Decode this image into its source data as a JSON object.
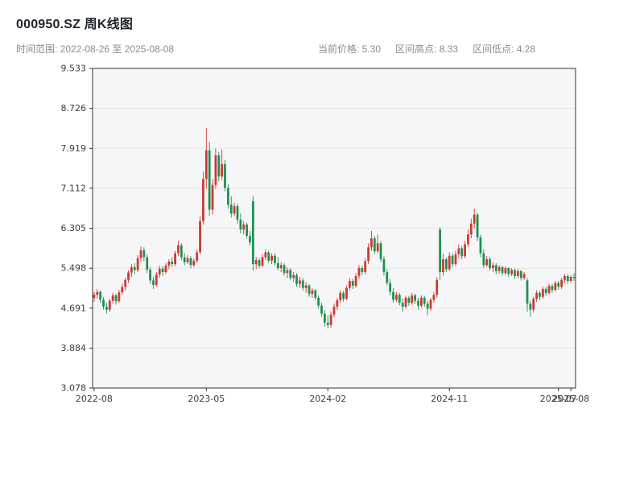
{
  "header": {
    "title": "000950.SZ 周K线图",
    "date_range_text": "时间范围: 2022-08-26 至 2025-08-08",
    "current_price_text": "当前价格: 5.30",
    "range_high_text": "区间高点: 8.33",
    "range_low_text": "区间低点: 4.28"
  },
  "chart_data": {
    "type": "candlestick",
    "title": "000950.SZ 周K线图",
    "symbol": "000950.SZ",
    "interval": "weekly",
    "start_date": "2022-08-26",
    "end_date": "2025-08-08",
    "current_price": 5.3,
    "range_high": 8.33,
    "range_low": 4.28,
    "ylim": [
      3.078,
      9.533
    ],
    "y_ticks": [
      3.078,
      3.884,
      4.691,
      5.498,
      6.305,
      7.112,
      7.919,
      8.726,
      9.533
    ],
    "x_ticks": [
      {
        "index": 0,
        "label": "2022-08"
      },
      {
        "index": 36,
        "label": "2023-05"
      },
      {
        "index": 75,
        "label": "2024-02"
      },
      {
        "index": 114,
        "label": "2024-11"
      },
      {
        "index": 149,
        "label": "2025-07"
      },
      {
        "index": 153,
        "label": "2025-08"
      }
    ],
    "grid": "horizontal",
    "legend": "none",
    "colors": {
      "up": "#cc3a30",
      "down": "#1e9151",
      "plot_bg": "#f6f6f8",
      "grid": "#e7e7ea",
      "axis": "#333333"
    },
    "candles": [
      [
        4.9,
        5.02,
        4.82,
        4.96
      ],
      [
        4.96,
        5.08,
        4.88,
        5.02
      ],
      [
        5.02,
        5.05,
        4.8,
        4.86
      ],
      [
        4.86,
        4.92,
        4.66,
        4.72
      ],
      [
        4.72,
        4.8,
        4.58,
        4.66
      ],
      [
        4.66,
        4.88,
        4.62,
        4.84
      ],
      [
        4.84,
        5.0,
        4.78,
        4.95
      ],
      [
        4.95,
        4.98,
        4.76,
        4.83
      ],
      [
        4.83,
        5.06,
        4.8,
        5.01
      ],
      [
        5.01,
        5.18,
        4.96,
        5.12
      ],
      [
        5.12,
        5.3,
        5.05,
        5.26
      ],
      [
        5.26,
        5.45,
        5.2,
        5.41
      ],
      [
        5.41,
        5.58,
        5.32,
        5.52
      ],
      [
        5.52,
        5.6,
        5.38,
        5.46
      ],
      [
        5.46,
        5.76,
        5.42,
        5.7
      ],
      [
        5.7,
        5.94,
        5.62,
        5.86
      ],
      [
        5.86,
        5.92,
        5.64,
        5.72
      ],
      [
        5.72,
        5.78,
        5.4,
        5.47
      ],
      [
        5.47,
        5.52,
        5.18,
        5.25
      ],
      [
        5.25,
        5.32,
        5.08,
        5.16
      ],
      [
        5.16,
        5.42,
        5.12,
        5.37
      ],
      [
        5.37,
        5.55,
        5.3,
        5.49
      ],
      [
        5.49,
        5.54,
        5.34,
        5.42
      ],
      [
        5.42,
        5.6,
        5.38,
        5.55
      ],
      [
        5.55,
        5.68,
        5.48,
        5.63
      ],
      [
        5.63,
        5.72,
        5.52,
        5.58
      ],
      [
        5.58,
        5.85,
        5.54,
        5.8
      ],
      [
        5.8,
        6.05,
        5.74,
        5.96
      ],
      [
        5.96,
        6.0,
        5.66,
        5.72
      ],
      [
        5.72,
        5.8,
        5.56,
        5.62
      ],
      [
        5.62,
        5.76,
        5.58,
        5.7
      ],
      [
        5.7,
        5.74,
        5.5,
        5.56
      ],
      [
        5.56,
        5.7,
        5.52,
        5.65
      ],
      [
        5.65,
        5.88,
        5.6,
        5.82
      ],
      [
        5.82,
        6.55,
        5.78,
        6.45
      ],
      [
        6.45,
        7.45,
        6.38,
        7.3
      ],
      [
        7.3,
        8.33,
        7.1,
        7.88
      ],
      [
        7.88,
        8.05,
        6.55,
        6.68
      ],
      [
        6.68,
        7.3,
        6.58,
        7.18
      ],
      [
        7.18,
        7.92,
        7.1,
        7.78
      ],
      [
        7.78,
        7.85,
        7.25,
        7.35
      ],
      [
        7.35,
        7.9,
        7.28,
        7.6
      ],
      [
        7.6,
        7.68,
        7.05,
        7.12
      ],
      [
        7.12,
        7.2,
        6.7,
        6.78
      ],
      [
        6.78,
        6.95,
        6.52,
        6.6
      ],
      [
        6.6,
        6.82,
        6.55,
        6.75
      ],
      [
        6.75,
        6.8,
        6.4,
        6.48
      ],
      [
        6.48,
        6.6,
        6.2,
        6.28
      ],
      [
        6.28,
        6.45,
        6.18,
        6.38
      ],
      [
        6.38,
        6.42,
        6.1,
        6.15
      ],
      [
        6.15,
        6.25,
        5.95,
        6.02
      ],
      [
        6.85,
        6.95,
        5.45,
        5.58
      ],
      [
        5.58,
        5.72,
        5.48,
        5.66
      ],
      [
        5.66,
        5.7,
        5.5,
        5.55
      ],
      [
        5.55,
        5.78,
        5.52,
        5.72
      ],
      [
        5.72,
        5.88,
        5.66,
        5.82
      ],
      [
        5.82,
        5.86,
        5.6,
        5.65
      ],
      [
        5.65,
        5.8,
        5.58,
        5.75
      ],
      [
        5.75,
        5.8,
        5.55,
        5.6
      ],
      [
        5.6,
        5.72,
        5.45,
        5.5
      ],
      [
        5.5,
        5.62,
        5.42,
        5.56
      ],
      [
        5.56,
        5.6,
        5.35,
        5.4
      ],
      [
        5.4,
        5.52,
        5.3,
        5.46
      ],
      [
        5.46,
        5.5,
        5.25,
        5.3
      ],
      [
        5.3,
        5.42,
        5.22,
        5.36
      ],
      [
        5.36,
        5.4,
        5.12,
        5.18
      ],
      [
        5.18,
        5.32,
        5.1,
        5.25
      ],
      [
        5.25,
        5.3,
        5.05,
        5.1
      ],
      [
        5.1,
        5.22,
        5.0,
        5.15
      ],
      [
        5.15,
        5.18,
        4.92,
        4.98
      ],
      [
        4.98,
        5.1,
        4.9,
        5.05
      ],
      [
        5.05,
        5.08,
        4.85,
        4.9
      ],
      [
        4.9,
        4.95,
        4.68,
        4.74
      ],
      [
        4.74,
        4.8,
        4.52,
        4.58
      ],
      [
        4.58,
        4.65,
        4.32,
        4.4
      ],
      [
        4.4,
        4.55,
        4.28,
        4.35
      ],
      [
        4.35,
        4.62,
        4.3,
        4.56
      ],
      [
        4.56,
        4.78,
        4.5,
        4.72
      ],
      [
        4.72,
        4.9,
        4.65,
        4.85
      ],
      [
        4.85,
        5.05,
        4.8,
        5.0
      ],
      [
        5.0,
        5.04,
        4.82,
        4.88
      ],
      [
        4.88,
        5.15,
        4.85,
        5.1
      ],
      [
        5.1,
        5.3,
        5.05,
        5.24
      ],
      [
        5.24,
        5.28,
        5.08,
        5.14
      ],
      [
        5.14,
        5.4,
        5.1,
        5.34
      ],
      [
        5.34,
        5.56,
        5.28,
        5.5
      ],
      [
        5.5,
        5.55,
        5.36,
        5.42
      ],
      [
        5.42,
        5.7,
        5.38,
        5.64
      ],
      [
        5.64,
        6.0,
        5.58,
        5.92
      ],
      [
        5.92,
        6.25,
        5.85,
        6.1
      ],
      [
        6.1,
        6.15,
        5.78,
        5.84
      ],
      [
        5.84,
        6.18,
        5.8,
        6.0
      ],
      [
        6.0,
        6.05,
        5.62,
        5.68
      ],
      [
        5.68,
        5.74,
        5.35,
        5.42
      ],
      [
        5.42,
        5.48,
        5.15,
        5.2
      ],
      [
        5.2,
        5.28,
        4.95,
        5.02
      ],
      [
        5.02,
        5.1,
        4.8,
        4.86
      ],
      [
        4.86,
        5.02,
        4.82,
        4.96
      ],
      [
        4.96,
        5.0,
        4.75,
        4.8
      ],
      [
        4.8,
        4.88,
        4.62,
        4.72
      ],
      [
        4.72,
        4.94,
        4.68,
        4.9
      ],
      [
        4.9,
        4.94,
        4.74,
        4.8
      ],
      [
        4.8,
        5.0,
        4.76,
        4.95
      ],
      [
        4.95,
        4.98,
        4.78,
        4.84
      ],
      [
        4.84,
        4.9,
        4.66,
        4.74
      ],
      [
        4.74,
        4.95,
        4.7,
        4.9
      ],
      [
        4.9,
        4.94,
        4.72,
        4.78
      ],
      [
        4.78,
        4.84,
        4.55,
        4.68
      ],
      [
        4.68,
        4.9,
        4.64,
        4.86
      ],
      [
        4.86,
        5.02,
        4.8,
        4.96
      ],
      [
        4.96,
        5.32,
        4.9,
        5.26
      ],
      [
        6.28,
        6.33,
        5.25,
        5.42
      ],
      [
        5.42,
        5.78,
        5.35,
        5.68
      ],
      [
        5.68,
        5.72,
        5.42,
        5.48
      ],
      [
        5.48,
        5.82,
        5.44,
        5.75
      ],
      [
        5.75,
        5.8,
        5.52,
        5.58
      ],
      [
        5.58,
        5.85,
        5.54,
        5.78
      ],
      [
        5.78,
        5.98,
        5.7,
        5.9
      ],
      [
        5.9,
        5.95,
        5.68,
        5.74
      ],
      [
        5.74,
        6.05,
        5.7,
        5.98
      ],
      [
        5.98,
        6.28,
        5.92,
        6.18
      ],
      [
        6.18,
        6.5,
        6.1,
        6.4
      ],
      [
        6.4,
        6.7,
        6.3,
        6.58
      ],
      [
        6.58,
        6.62,
        6.05,
        6.12
      ],
      [
        6.12,
        6.18,
        5.72,
        5.8
      ],
      [
        5.8,
        5.88,
        5.5,
        5.56
      ],
      [
        5.56,
        5.74,
        5.52,
        5.68
      ],
      [
        5.68,
        5.72,
        5.45,
        5.5
      ],
      [
        5.5,
        5.62,
        5.42,
        5.56
      ],
      [
        5.56,
        5.6,
        5.38,
        5.44
      ],
      [
        5.44,
        5.56,
        5.38,
        5.52
      ],
      [
        5.52,
        5.55,
        5.35,
        5.4
      ],
      [
        5.4,
        5.54,
        5.36,
        5.5
      ],
      [
        5.5,
        5.52,
        5.32,
        5.38
      ],
      [
        5.38,
        5.5,
        5.34,
        5.46
      ],
      [
        5.46,
        5.49,
        5.28,
        5.34
      ],
      [
        5.34,
        5.48,
        5.3,
        5.44
      ],
      [
        5.44,
        5.46,
        5.25,
        5.3
      ],
      [
        5.3,
        5.42,
        5.26,
        5.38
      ],
      [
        5.25,
        5.3,
        4.62,
        4.78
      ],
      [
        4.78,
        4.84,
        4.52,
        4.66
      ],
      [
        4.66,
        4.92,
        4.6,
        4.88
      ],
      [
        4.88,
        5.05,
        4.82,
        5.0
      ],
      [
        5.0,
        5.04,
        4.85,
        4.92
      ],
      [
        4.92,
        5.12,
        4.88,
        5.08
      ],
      [
        5.08,
        5.12,
        4.94,
        5.0
      ],
      [
        5.0,
        5.18,
        4.96,
        5.14
      ],
      [
        5.14,
        5.18,
        5.0,
        5.06
      ],
      [
        5.06,
        5.24,
        5.02,
        5.2
      ],
      [
        5.2,
        5.24,
        5.06,
        5.12
      ],
      [
        5.12,
        5.3,
        5.08,
        5.26
      ],
      [
        5.26,
        5.38,
        5.2,
        5.34
      ],
      [
        5.34,
        5.38,
        5.18,
        5.24
      ],
      [
        5.24,
        5.36,
        5.2,
        5.32
      ],
      [
        5.32,
        5.4,
        5.24,
        5.3
      ]
    ]
  }
}
